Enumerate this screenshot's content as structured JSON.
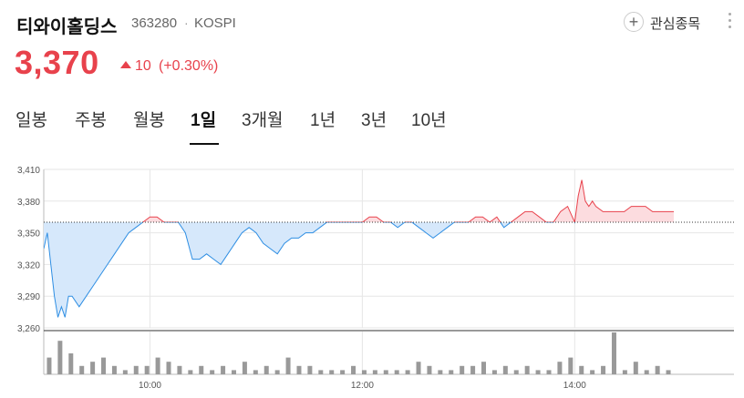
{
  "header": {
    "name": "티와이홀딩스",
    "code": "363280",
    "separator": "·",
    "market": "KOSPI",
    "watch_label": "관심종목"
  },
  "quote": {
    "price": "3,370",
    "change": "10",
    "change_pct": "(+0.30%)",
    "direction": "up",
    "up_color": "#e8424c",
    "down_color": "#2e8ee3"
  },
  "tabs": [
    {
      "label": "일봉",
      "active": false
    },
    {
      "label": "주봉",
      "active": false
    },
    {
      "label": "월봉",
      "active": false
    },
    {
      "label": "1일",
      "active": true
    },
    {
      "label": "3개월",
      "active": false
    },
    {
      "label": "1년",
      "active": false
    },
    {
      "label": "3년",
      "active": false
    },
    {
      "label": "10년",
      "active": false
    }
  ],
  "chart_data": {
    "type": "area",
    "baseline": 3360,
    "ylim": [
      3260,
      3410
    ],
    "y_ticks": [
      3260,
      3290,
      3320,
      3350,
      3380,
      3410
    ],
    "y_tick_labels": [
      "3,260",
      "3,290",
      "3,320",
      "3,350",
      "3,380",
      "3,410"
    ],
    "x_range": [
      "09:00",
      "15:30"
    ],
    "x_ticks": [
      "10:00",
      "12:00",
      "14:00"
    ],
    "grid": true,
    "series": [
      {
        "x": [
          "09:00",
          "09:02",
          "09:04",
          "09:06",
          "09:08",
          "09:10",
          "09:12",
          "09:14",
          "09:16",
          "09:20",
          "09:24",
          "09:28",
          "09:32",
          "09:36",
          "09:40",
          "09:44",
          "09:48",
          "09:52",
          "09:56",
          "10:00",
          "10:04",
          "10:08",
          "10:12",
          "10:16",
          "10:20",
          "10:24",
          "10:28",
          "10:32",
          "10:36",
          "10:40",
          "10:44",
          "10:48",
          "10:52",
          "10:56",
          "11:00",
          "11:04",
          "11:08",
          "11:12",
          "11:16",
          "11:20",
          "11:24",
          "11:28",
          "11:32",
          "11:36",
          "11:40",
          "11:44",
          "11:48",
          "11:52",
          "11:56",
          "12:00",
          "12:04",
          "12:08",
          "12:12",
          "12:16",
          "12:20",
          "12:24",
          "12:28",
          "12:32",
          "12:36",
          "12:40",
          "12:44",
          "12:48",
          "12:52",
          "12:56",
          "13:00",
          "13:04",
          "13:08",
          "13:12",
          "13:16",
          "13:20",
          "13:24",
          "13:28",
          "13:32",
          "13:36",
          "13:40",
          "13:44",
          "13:48",
          "13:52",
          "13:56",
          "14:00",
          "14:02",
          "14:04",
          "14:06",
          "14:08",
          "14:10",
          "14:12",
          "14:16",
          "14:20",
          "14:24",
          "14:28",
          "14:32",
          "14:36",
          "14:40",
          "14:44",
          "14:48",
          "14:52",
          "14:56"
        ],
        "y": [
          3335,
          3350,
          3320,
          3290,
          3270,
          3280,
          3270,
          3290,
          3290,
          3280,
          3290,
          3300,
          3310,
          3320,
          3330,
          3340,
          3350,
          3355,
          3360,
          3365,
          3365,
          3360,
          3360,
          3360,
          3350,
          3325,
          3325,
          3330,
          3325,
          3320,
          3330,
          3340,
          3350,
          3355,
          3350,
          3340,
          3335,
          3330,
          3340,
          3345,
          3345,
          3350,
          3350,
          3355,
          3360,
          3360,
          3360,
          3360,
          3360,
          3360,
          3365,
          3365,
          3360,
          3360,
          3355,
          3360,
          3360,
          3355,
          3350,
          3345,
          3350,
          3355,
          3360,
          3360,
          3360,
          3365,
          3365,
          3360,
          3365,
          3355,
          3360,
          3365,
          3370,
          3370,
          3365,
          3360,
          3360,
          3370,
          3375,
          3360,
          3385,
          3400,
          3380,
          3375,
          3380,
          3375,
          3370,
          3370,
          3370,
          3370,
          3375,
          3375,
          3375,
          3370,
          3370,
          3370,
          3370
        ]
      }
    ],
    "volume": [
      4,
      8,
      5,
      2,
      3,
      4,
      2,
      1,
      2,
      2,
      4,
      3,
      2,
      1,
      2,
      1,
      2,
      1,
      3,
      1,
      2,
      1,
      4,
      2,
      2,
      1,
      1,
      1,
      2,
      1,
      1,
      1,
      1,
      1,
      3,
      2,
      1,
      1,
      2,
      2,
      3,
      1,
      2,
      1,
      2,
      1,
      1,
      3,
      4,
      2,
      1,
      2,
      10,
      1,
      3,
      1,
      2,
      1
    ]
  }
}
